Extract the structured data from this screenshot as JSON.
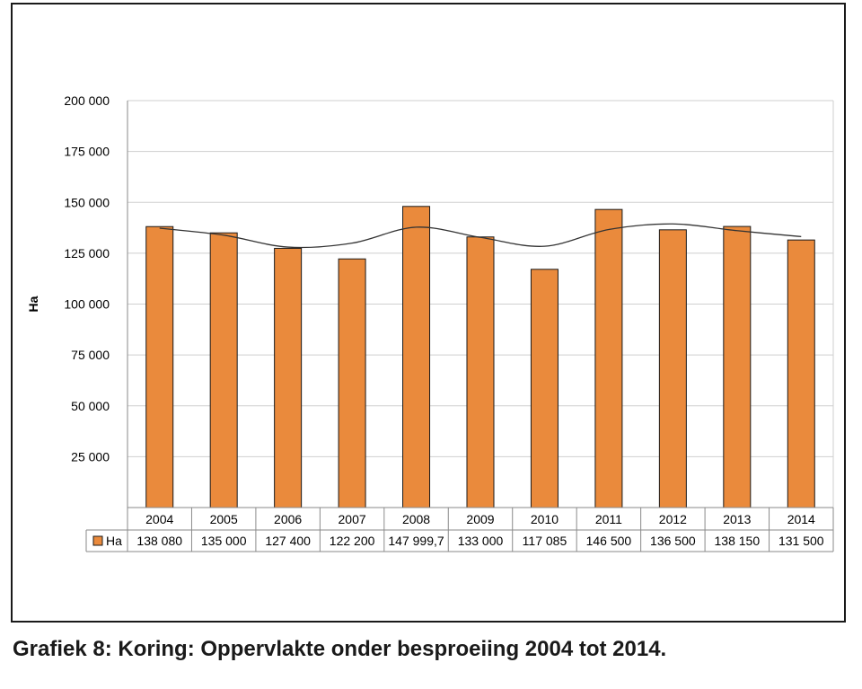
{
  "chart_data": {
    "type": "bar",
    "categories": [
      "2004",
      "2005",
      "2006",
      "2007",
      "2008",
      "2009",
      "2010",
      "2011",
      "2012",
      "2013",
      "2014"
    ],
    "series": [
      {
        "name": "Ha",
        "values": [
          138080,
          135000,
          127400,
          122200,
          147999.7,
          133000,
          117085,
          146500,
          136500,
          138150,
          131500
        ]
      }
    ],
    "value_labels": [
      "138 080",
      "135 000",
      "127 400",
      "122 200",
      "147 999,7",
      "133 000",
      "117 085",
      "146 500",
      "136 500",
      "138 150",
      "131 500"
    ],
    "ylabel": "Ha",
    "ylim": [
      0,
      200000
    ],
    "yticks": [
      0,
      25000,
      50000,
      75000,
      100000,
      125000,
      150000,
      175000,
      200000
    ],
    "ytick_labels": [
      "",
      "25 000",
      "50 000",
      "75 000",
      "100 000",
      "125 000",
      "150 000",
      "175 000",
      "200 000"
    ],
    "bar_color": "#ea8a3c",
    "bar_edge_color": "#1a1a1a",
    "grid": true,
    "trendline": true,
    "data_table": true
  },
  "caption": "Grafiek 8: Koring: Oppervlakte onder besproeiing 2004 tot 2014."
}
